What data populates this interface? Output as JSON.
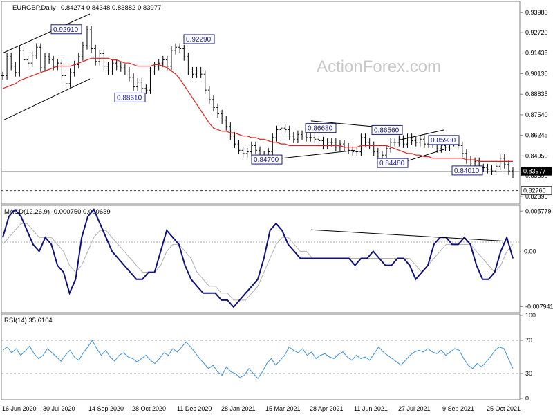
{
  "chart_data": {
    "type": "line",
    "watermark": "ActionForex.com",
    "colors": {
      "price": "#000000",
      "ma": "#e02020",
      "macd": "#10107a",
      "signal": "#b0b0b0",
      "rsi": "#3a8fd8",
      "label_border": "#1a1a8a",
      "label_text": "#1a1a8a"
    },
    "x_ticks": [
      "16 Jun 2020",
      "30 Jul 2020",
      "14 Sep 2020",
      "28 Oct 2020",
      "11 Dec 2020",
      "28 Jan 2021",
      "15 Mar 2021",
      "28 Apr 2021",
      "11 Jun 2021",
      "27 Jul 2021",
      "9 Sep 2021",
      "25 Oct 2021"
    ],
    "price_panel": {
      "header": {
        "symbol": "EURGBP,Daily",
        "ohlc": "0.84274 0.84348 0.83882 0.83977"
      },
      "y_ticks": [
        "0.93980",
        "0.92720",
        "0.91435",
        "0.90130",
        "0.88835",
        "0.87540",
        "0.86245",
        "0.84950",
        "0.83690",
        "0.82395"
      ],
      "ylim": [
        0.82,
        0.946
      ],
      "current_price": "0.83977",
      "support_level": "0.82760",
      "support_value": 0.8276,
      "annotations": [
        {
          "label": "0.92910",
          "x": "30 Jul 2020",
          "value": 0.9291
        },
        {
          "label": "0.88610",
          "x": "14 Sep 2020",
          "value": 0.8861
        },
        {
          "label": "0.92290",
          "x": "11 Dec 2020",
          "value": 0.9229
        },
        {
          "label": "0.84700",
          "x": "15 Mar 2021",
          "value": 0.847
        },
        {
          "label": "0.86680",
          "x": "28 Apr 2021",
          "value": 0.8668
        },
        {
          "label": "0.84480",
          "x": "27 Jul 2021",
          "value": 0.8448
        },
        {
          "label": "0.86560",
          "x": "27 Jul 2021",
          "value": 0.8656
        },
        {
          "label": "0.85930",
          "x": "9 Sep 2021",
          "value": 0.8593
        },
        {
          "label": "0.84010",
          "x": "25 Oct 2021",
          "value": 0.8401
        }
      ],
      "close_series": [
        0.9,
        0.912,
        0.906,
        0.902,
        0.916,
        0.91,
        0.908,
        0.913,
        0.918,
        0.905,
        0.912,
        0.91,
        0.906,
        0.908,
        0.9,
        0.895,
        0.902,
        0.907,
        0.912,
        0.919,
        0.929,
        0.917,
        0.909,
        0.914,
        0.906,
        0.903,
        0.908,
        0.906,
        0.905,
        0.903,
        0.899,
        0.893,
        0.896,
        0.892,
        0.891,
        0.903,
        0.906,
        0.908,
        0.91,
        0.906,
        0.916,
        0.918,
        0.917,
        0.912,
        0.903,
        0.901,
        0.903,
        0.901,
        0.891,
        0.885,
        0.88,
        0.876,
        0.872,
        0.868,
        0.862,
        0.857,
        0.853,
        0.851,
        0.852,
        0.856,
        0.853,
        0.849,
        0.85,
        0.852,
        0.861,
        0.866,
        0.867,
        0.866,
        0.862,
        0.86,
        0.863,
        0.862,
        0.861,
        0.861,
        0.86,
        0.859,
        0.856,
        0.858,
        0.858,
        0.855,
        0.857,
        0.855,
        0.853,
        0.852,
        0.852,
        0.861,
        0.858,
        0.856,
        0.852,
        0.848,
        0.85,
        0.854,
        0.858,
        0.858,
        0.86,
        0.857,
        0.861,
        0.859,
        0.858,
        0.86,
        0.857,
        0.858,
        0.857,
        0.854,
        0.856,
        0.855,
        0.859,
        0.858,
        0.856,
        0.851,
        0.847,
        0.845,
        0.846,
        0.842,
        0.842,
        0.841,
        0.84,
        0.843,
        0.848,
        0.844,
        0.84,
        0.838
      ],
      "ma_series": [
        0.892,
        0.893,
        0.894,
        0.895,
        0.897,
        0.898,
        0.899,
        0.9,
        0.901,
        0.902,
        0.903,
        0.904,
        0.905,
        0.906,
        0.906,
        0.906,
        0.906,
        0.907,
        0.908,
        0.909,
        0.91,
        0.911,
        0.911,
        0.911,
        0.911,
        0.911,
        0.91,
        0.91,
        0.909,
        0.908,
        0.908,
        0.907,
        0.906,
        0.906,
        0.906,
        0.906,
        0.907,
        0.907,
        0.906,
        0.905,
        0.903,
        0.901,
        0.898,
        0.894,
        0.89,
        0.886,
        0.882,
        0.878,
        0.874,
        0.87,
        0.867,
        0.866,
        0.865,
        0.865,
        0.864,
        0.864,
        0.863,
        0.862,
        0.862,
        0.861,
        0.861,
        0.86,
        0.86,
        0.859,
        0.858,
        0.858,
        0.857,
        0.857,
        0.856,
        0.856,
        0.856,
        0.856,
        0.856,
        0.856,
        0.856,
        0.856,
        0.856,
        0.856,
        0.856,
        0.856,
        0.856,
        0.855,
        0.855,
        0.855,
        0.855,
        0.856,
        0.856,
        0.856,
        0.856,
        0.856,
        0.856,
        0.856,
        0.855,
        0.854,
        0.853,
        0.852,
        0.851,
        0.851,
        0.85,
        0.85,
        0.849,
        0.849,
        0.848,
        0.848,
        0.848,
        0.848,
        0.848,
        0.848,
        0.848,
        0.848,
        0.847,
        0.847,
        0.847,
        0.846,
        0.846,
        0.846,
        0.846,
        0.846,
        0.846,
        0.846,
        0.846,
        0.846
      ],
      "trendlines": [
        {
          "from": [
            "16 Jun 2020",
            0.9145
          ],
          "to": [
            "14 Sep 2020",
            0.939
          ]
        },
        {
          "from": [
            "16 Jun 2020",
            0.872
          ],
          "to": [
            "14 Sep 2020",
            0.898
          ]
        },
        {
          "from": [
            "15 Mar 2021",
            0.847
          ],
          "to": [
            "11 Jun 2021",
            0.853
          ]
        },
        {
          "from": [
            "28 Apr 2021",
            0.8715
          ],
          "to": [
            "27 Jul 2021",
            0.8665
          ]
        },
        {
          "from": [
            "27 Jul 2021",
            0.8448
          ],
          "to": [
            "9 Sep 2021",
            0.8535
          ]
        },
        {
          "from": [
            "27 Jul 2021",
            0.8595
          ],
          "to": [
            "9 Sep 2021",
            0.8658
          ]
        }
      ]
    },
    "macd_panel": {
      "header": "MACD(12,26,9) -0.000750 0.000639",
      "y_ticks": [
        "0.005779",
        "0.00",
        "-0.007941"
      ],
      "ylim": [
        -0.0086,
        0.0064
      ],
      "current_macd": "0.00",
      "macd_series": [
        0.002,
        0.005,
        0.006,
        0.005,
        0.003,
        0.001,
        0.0,
        0.002,
        0.001,
        -0.002,
        -0.003,
        -0.006,
        -0.004,
        0.002,
        0.005,
        0.006,
        0.004,
        0.002,
        0.0,
        -0.001,
        -0.002,
        -0.003,
        -0.004,
        -0.004,
        -0.003,
        -0.003,
        0.0,
        0.003,
        0.002,
        0.001,
        -0.002,
        -0.004,
        -0.005,
        -0.006,
        -0.006,
        -0.006,
        -0.007,
        -0.007,
        -0.008,
        -0.007,
        -0.006,
        -0.005,
        -0.004,
        -0.001,
        0.003,
        0.004,
        0.003,
        0.001,
        0.0,
        -0.001,
        -0.001,
        -0.001,
        -0.001,
        -0.001,
        -0.001,
        -0.001,
        -0.001,
        -0.001,
        -0.002,
        -0.001,
        -0.001,
        0.0,
        -0.001,
        -0.002,
        -0.002,
        -0.001,
        -0.001,
        -0.002,
        -0.004,
        -0.003,
        -0.002,
        0.001,
        0.002,
        0.002,
        0.001,
        0.001,
        0.002,
        0.001,
        -0.002,
        -0.004,
        -0.004,
        -0.003,
        0.0,
        0.002,
        -0.001
      ],
      "signal_series": [
        0.001,
        0.002,
        0.003,
        0.004,
        0.004,
        0.003,
        0.002,
        0.002,
        0.002,
        0.001,
        0.0,
        -0.002,
        -0.003,
        -0.002,
        0.0,
        0.002,
        0.003,
        0.003,
        0.002,
        0.001,
        0.0,
        -0.001,
        -0.002,
        -0.003,
        -0.003,
        -0.003,
        -0.002,
        0.0,
        0.001,
        0.001,
        0.0,
        -0.001,
        -0.003,
        -0.004,
        -0.005,
        -0.005,
        -0.006,
        -0.006,
        -0.007,
        -0.007,
        -0.007,
        -0.006,
        -0.005,
        -0.003,
        -0.001,
        0.001,
        0.002,
        0.002,
        0.001,
        0.0,
        0.0,
        -0.001,
        -0.001,
        -0.001,
        -0.001,
        -0.001,
        -0.001,
        -0.001,
        -0.001,
        -0.001,
        -0.001,
        -0.001,
        -0.001,
        -0.001,
        -0.001,
        -0.001,
        -0.001,
        -0.001,
        -0.002,
        -0.003,
        -0.002,
        -0.001,
        0.0,
        0.001,
        0.001,
        0.001,
        0.001,
        0.001,
        0.0,
        -0.001,
        -0.002,
        -0.003,
        -0.002,
        0.0,
        0.001
      ],
      "trendline": {
        "from": [
          "28 Apr 2021",
          0.0031
        ],
        "to": [
          "25 Oct 2021",
          0.0015
        ]
      }
    },
    "rsi_panel": {
      "header": "RSI(14) 35.6164",
      "y_ticks": [
        "100",
        "70",
        "30",
        "0"
      ],
      "ylim": [
        0,
        100
      ],
      "levels": [
        70,
        30
      ],
      "rsi_series": [
        58,
        62,
        55,
        60,
        52,
        57,
        63,
        54,
        48,
        52,
        60,
        55,
        50,
        45,
        52,
        58,
        50,
        46,
        55,
        62,
        70,
        60,
        52,
        58,
        50,
        45,
        52,
        55,
        50,
        48,
        44,
        48,
        52,
        46,
        42,
        48,
        55,
        52,
        60,
        56,
        62,
        68,
        62,
        55,
        48,
        42,
        36,
        40,
        32,
        28,
        38,
        32,
        30,
        25,
        28,
        36,
        30,
        24,
        32,
        42,
        48,
        40,
        46,
        52,
        62,
        58,
        55,
        60,
        52,
        56,
        48,
        52,
        54,
        50,
        48,
        53,
        56,
        50,
        46,
        52,
        48,
        50,
        46,
        54,
        62,
        56,
        52,
        48,
        44,
        40,
        46,
        52,
        56,
        58,
        56,
        60,
        56,
        54,
        58,
        52,
        56,
        60,
        58,
        48,
        40,
        36,
        42,
        38,
        44,
        50,
        58,
        62,
        60,
        48,
        36
      ]
    }
  }
}
